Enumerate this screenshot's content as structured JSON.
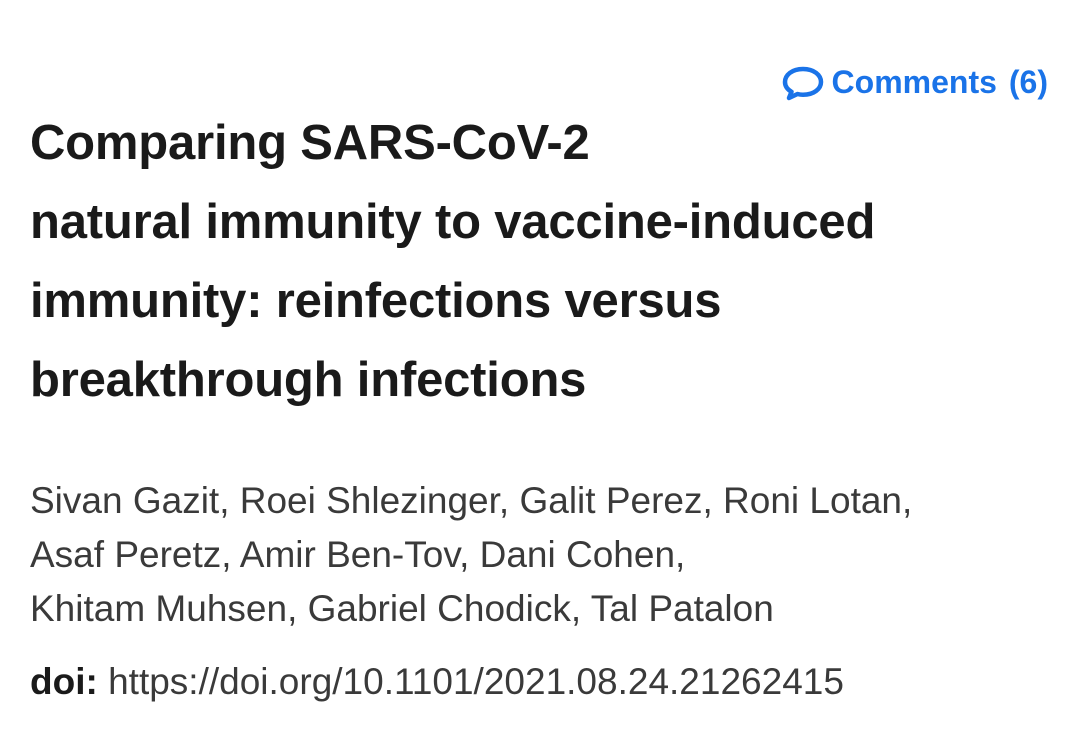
{
  "comments": {
    "label": "Comments",
    "count": "(6)",
    "icon": "speech-bubble-icon",
    "color": "#1a73e8"
  },
  "title": {
    "lines": [
      "Comparing SARS-CoV-2",
      "natural immunity to vaccine-induced",
      "immunity: reinfections versus",
      "breakthrough infections"
    ]
  },
  "authors": {
    "lines": [
      "Sivan Gazit, Roei Shlezinger, Galit Perez, Roni Lotan,",
      "Asaf Peretz, Amir Ben-Tov, Dani Cohen,",
      "Khitam Muhsen, Gabriel Chodick, Tal Patalon"
    ]
  },
  "doi": {
    "label": "doi:",
    "url": "https://doi.org/10.1101/2021.08.24.21262415"
  }
}
